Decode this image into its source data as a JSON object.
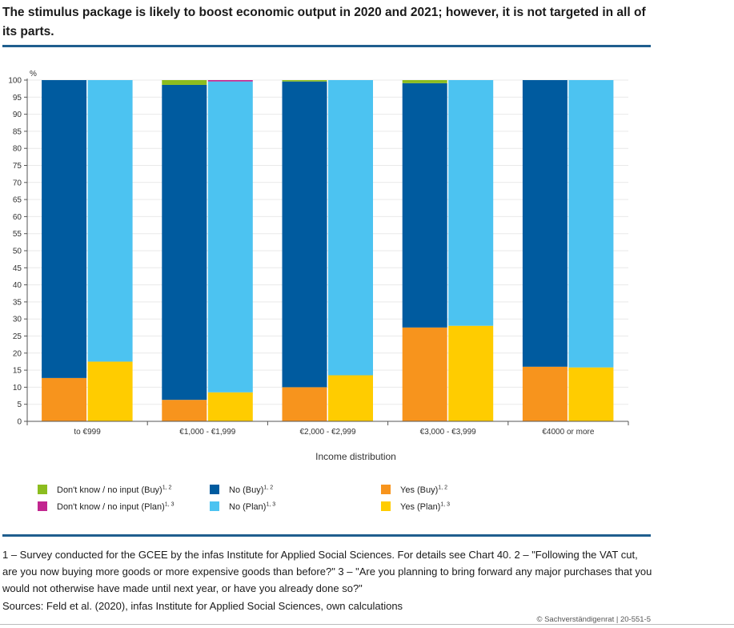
{
  "title": "The stimulus package is likely to boost economic output in 2020 and 2021; however, it is not targeted in all of its parts.",
  "notes": "1 – Survey conducted for the GCEE by the infas Institute for Applied Social Sciences. For details see Chart 40.  2 – \"Following the VAT cut, are you now buying more goods or more expensive goods than before?\"  3 – \"Are you planning to bring forward any major purchases that you would not otherwise have made until next year, or have you already done so?\"",
  "sources": "Sources: Feld et al. (2020), infas Institute for Applied Social Sciences, own calculations",
  "copyright": "© Sachverständigenrat | 20-551-5",
  "colors": {
    "yes_buy": "#f7941d",
    "yes_plan": "#ffcc00",
    "no_buy": "#005b9f",
    "no_plan": "#4cc3f1",
    "dk_buy": "#8cbd1f",
    "dk_plan": "#c2268f",
    "rule": "#1f5e8e"
  },
  "legend": [
    {
      "label": "Don't know / no input (Buy)",
      "sup": "1, 2",
      "color_key": "dk_buy"
    },
    {
      "label": "Don't know / no input (Plan)",
      "sup": "1, 3",
      "color_key": "dk_plan"
    },
    {
      "label": "No (Buy)",
      "sup": "1, 2",
      "color_key": "no_buy"
    },
    {
      "label": "No (Plan)",
      "sup": "1, 3",
      "color_key": "no_plan"
    },
    {
      "label": "Yes (Buy)",
      "sup": "1, 2",
      "color_key": "yes_buy"
    },
    {
      "label": "Yes (Plan)",
      "sup": "1, 3",
      "color_key": "yes_plan"
    }
  ],
  "chart_data": {
    "type": "bar",
    "stacked": true,
    "xlabel": "Income distribution",
    "ylabel": "%",
    "ylim": [
      0,
      100
    ],
    "yticks": [
      0,
      5,
      10,
      15,
      20,
      25,
      30,
      35,
      40,
      45,
      50,
      55,
      60,
      65,
      70,
      75,
      80,
      85,
      90,
      95,
      100
    ],
    "categories": [
      "to €999",
      "€1,000 - €1,999",
      "€2,000 - €2,999",
      "€3,000 - €3,999",
      "€4000 or more"
    ],
    "series": [
      {
        "name": "Yes (Buy)",
        "group": "Buy",
        "color_key": "yes_buy",
        "values": [
          12.7,
          6.3,
          10.0,
          27.5,
          16.0
        ]
      },
      {
        "name": "No (Buy)",
        "group": "Buy",
        "color_key": "no_buy",
        "values": [
          87.3,
          92.3,
          89.6,
          71.6,
          84.0
        ]
      },
      {
        "name": "Don't know / no input (Buy)",
        "group": "Buy",
        "color_key": "dk_buy",
        "values": [
          0.0,
          1.4,
          0.4,
          0.9,
          0.0
        ]
      },
      {
        "name": "Yes (Plan)",
        "group": "Plan",
        "color_key": "yes_plan",
        "values": [
          17.5,
          8.5,
          13.5,
          28.0,
          15.8
        ]
      },
      {
        "name": "No (Plan)",
        "group": "Plan",
        "color_key": "no_plan",
        "values": [
          82.5,
          91.1,
          86.5,
          72.0,
          84.2
        ]
      },
      {
        "name": "Don't know / no input (Plan)",
        "group": "Plan",
        "color_key": "dk_plan",
        "values": [
          0.0,
          0.4,
          0.0,
          0.0,
          0.0
        ]
      }
    ]
  }
}
